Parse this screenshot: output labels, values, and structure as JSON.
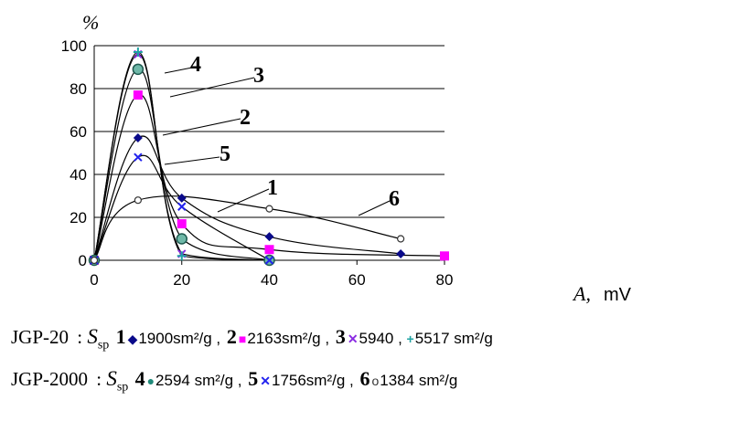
{
  "chart_data": {
    "type": "line",
    "ylabel": "%",
    "xlabel": "A,",
    "xunit": "mV",
    "xlim": [
      0,
      80
    ],
    "ylim": [
      0,
      100
    ],
    "xticks": [
      "0",
      "20",
      "40",
      "60",
      "80"
    ],
    "yticks": [
      "0",
      "20",
      "40",
      "60",
      "80",
      "100"
    ],
    "grid": "horizontal",
    "series": [
      {
        "name": "1",
        "marker": "diamond",
        "color": "#0a0a8a",
        "x": [
          0,
          10,
          20,
          40,
          70
        ],
        "y": [
          0,
          57,
          29,
          11,
          3
        ]
      },
      {
        "name": "2",
        "marker": "square",
        "color": "#ff00ff",
        "x": [
          0,
          10,
          20,
          40,
          80
        ],
        "y": [
          0,
          77,
          17,
          5,
          2
        ]
      },
      {
        "name": "3",
        "marker": "x",
        "color": "#8a2be2",
        "x": [
          0,
          10,
          20,
          40
        ],
        "y": [
          0,
          96,
          3,
          0
        ]
      },
      {
        "name": "3+",
        "marker": "plus",
        "color": "#1fa3a3",
        "x": [
          0,
          10,
          20,
          40
        ],
        "y": [
          0,
          97,
          2,
          0
        ]
      },
      {
        "name": "4",
        "marker": "circlefill",
        "color": "#1f8a7a",
        "x": [
          0,
          10,
          20,
          40
        ],
        "y": [
          0,
          89,
          10,
          0
        ]
      },
      {
        "name": "5",
        "marker": "xblue",
        "color": "#2222ee",
        "x": [
          0,
          10,
          20,
          40
        ],
        "y": [
          0,
          48,
          25,
          0
        ]
      },
      {
        "name": "6",
        "marker": "circleopen",
        "color": "#333333",
        "x": [
          0,
          10,
          40,
          70
        ],
        "y": [
          0,
          28,
          24,
          10
        ]
      }
    ],
    "curve_labels": [
      "4",
      "3",
      "2",
      "5",
      "1",
      "6"
    ]
  },
  "legend": {
    "row1": {
      "group": "JGP-20",
      "colon": ":",
      "s": "S",
      "sub": "sp",
      "items": [
        {
          "num": "1",
          "marker": "◆",
          "cls": "diamond",
          "text": "1900sm²/g ,"
        },
        {
          "num": "2",
          "marker": "■",
          "cls": "square",
          "text": "2163sm²/g ,"
        },
        {
          "num": "3",
          "marker": "✕",
          "cls": "xmark",
          "text": "5940 ,"
        },
        {
          "num": "",
          "marker": "+",
          "cls": "plus",
          "text": "5517 sm²/g"
        }
      ]
    },
    "row2": {
      "group": "JGP-2000",
      "colon": ":",
      "s": "S",
      "sub": "sp",
      "items": [
        {
          "num": "4",
          "marker": "●",
          "cls": "circlefill",
          "text": "2594 sm²/g ,"
        },
        {
          "num": "5",
          "marker": "✕",
          "cls": "xblue",
          "text": "1756sm²/g ,"
        },
        {
          "num": "6",
          "marker": "o",
          "cls": "circleopen",
          "text": "1384 sm²/g"
        }
      ]
    }
  }
}
